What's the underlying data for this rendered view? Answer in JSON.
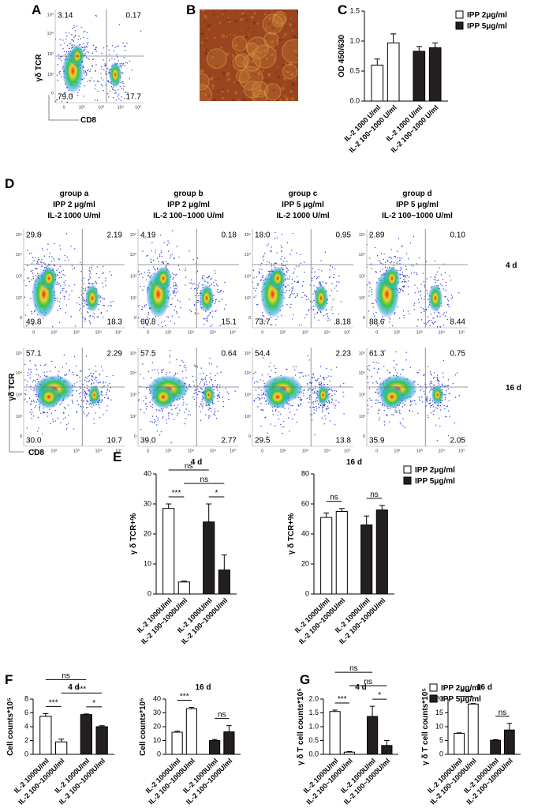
{
  "panel_labels": [
    "A",
    "B",
    "C",
    "D",
    "E",
    "F",
    "G"
  ],
  "flow_axes": {
    "y_label": "γδ TCR",
    "x_label": "CD8",
    "ticks": [
      "0",
      "10²",
      "10³",
      "10⁴",
      "10⁵"
    ]
  },
  "panel_a": {
    "quadrants": [
      "3.14",
      "0.17",
      "79.0",
      "17.7"
    ]
  },
  "panel_d": {
    "groups": [
      {
        "name": "group a",
        "ipp": "IPP 2 μg/ml",
        "il2": "IL-2 1000 U/ml"
      },
      {
        "name": "group b",
        "ipp": "IPP 2 μg/ml",
        "il2": "IL-2 100~1000 U/ml"
      },
      {
        "name": "group c",
        "ipp": "IPP 5 μg/ml",
        "il2": "IL-2 1000 U/ml"
      },
      {
        "name": "group d",
        "ipp": "IPP 5 μg/ml",
        "il2": "IL-2 100~1000 U/ml"
      }
    ],
    "rows": [
      {
        "label": "4 d",
        "quadrants": [
          [
            "29.8",
            "2.19",
            "49.8",
            "18.3"
          ],
          [
            "4.19",
            "0.18",
            "60.8",
            "15.1"
          ],
          [
            "18.0",
            "0.95",
            "73.7",
            "8.18"
          ],
          [
            "2.89",
            "0.10",
            "88.6",
            "8.44"
          ]
        ]
      },
      {
        "label": "16 d",
        "quadrants": [
          [
            "57.1",
            "2.29",
            "30.0",
            "10.7"
          ],
          [
            "57.5",
            "0.64",
            "39.0",
            "2.77"
          ],
          [
            "54.4",
            "2.23",
            "29.5",
            "13.8"
          ],
          [
            "61.3",
            "0.75",
            "35.9",
            "2.05"
          ]
        ]
      }
    ]
  },
  "chart_data": [
    {
      "type": "bar",
      "y_label": "OD 450/630",
      "categories": [
        "IL-2 1000 U/ml",
        "IL-2 100~1000 U/ml",
        "IL-2 1000 U/ml",
        "IL-2 100~1000 U/ml"
      ],
      "series": [
        {
          "name": "IPP 2μg/ml",
          "color": "#ffffff",
          "values": [
            0.6,
            0.97,
            null,
            null
          ],
          "errors": [
            0.1,
            0.15,
            null,
            null
          ]
        },
        {
          "name": "IPP 5μg/ml",
          "color": "#231f20",
          "values": [
            null,
            null,
            0.83,
            0.89
          ],
          "errors": [
            null,
            null,
            0.08,
            0.08
          ]
        }
      ],
      "ylim": [
        0,
        1.5
      ],
      "yticks": [
        {
          "value": 0,
          "label": "0.0"
        },
        0.5,
        {
          "value": 1,
          "label": "1.0"
        },
        1.5
      ],
      "legend": "right"
    },
    {
      "type": "bar",
      "title": "4 d",
      "y_label": "γ δ  TCR+%",
      "categories": [
        "IL-2 1000U/ml",
        "IL-2 100~1000U/ml",
        "IL-2 1000U/ml",
        "IL-2 100~1000U/ml"
      ],
      "series": [
        {
          "color": "#ffffff",
          "values": [
            28.5,
            4,
            null,
            null
          ],
          "errors": [
            1.5,
            0.3,
            null,
            null
          ]
        },
        {
          "color": "#231f20",
          "values": [
            null,
            null,
            24,
            8
          ],
          "errors": [
            null,
            null,
            6,
            5
          ]
        }
      ],
      "ylim": [
        0,
        40
      ],
      "yticks": [
        0,
        10,
        20,
        30,
        40
      ],
      "significance": [
        {
          "label": "***",
          "pair": [
            0,
            1
          ]
        },
        {
          "label": "*",
          "pair": [
            2,
            3
          ]
        },
        {
          "label": "ns",
          "pair": [
            1,
            3
          ]
        },
        {
          "label": "ns",
          "pair": [
            0,
            2
          ]
        }
      ]
    },
    {
      "type": "bar",
      "title": "16 d",
      "y_label": "γ δ TCR+%",
      "categories": [
        "IL-2 1000U/ml",
        "IL-2 100~1000U/ml",
        "IL-2 1000U/ml",
        "IL-2 100~1000U/ml"
      ],
      "series": [
        {
          "name": "IPP 2μg/ml",
          "color": "#ffffff",
          "values": [
            51,
            55,
            null,
            null
          ],
          "errors": [
            3,
            2,
            null,
            null
          ]
        },
        {
          "name": "IPP 5μg/ml",
          "color": "#231f20",
          "values": [
            null,
            null,
            46,
            56
          ],
          "errors": [
            null,
            null,
            6,
            3
          ]
        }
      ],
      "ylim": [
        0,
        80
      ],
      "yticks": [
        0,
        20,
        40,
        60,
        80
      ],
      "legend": "right",
      "significance": [
        {
          "label": "ns",
          "pair": [
            0,
            1
          ]
        },
        {
          "label": "ns",
          "pair": [
            2,
            3
          ]
        }
      ]
    },
    {
      "type": "bar",
      "title": "4 d",
      "y_label": "Cell counts*10⁵",
      "categories": [
        "IL-2 1000U/ml",
        "IL-2 100~1000U/ml",
        "IL-2 1000U/ml",
        "IL-2 100~1000U/ml"
      ],
      "series": [
        {
          "color": "#ffffff",
          "values": [
            5.5,
            1.8,
            null,
            null
          ],
          "errors": [
            0.4,
            0.4,
            null,
            null
          ]
        },
        {
          "color": "#231f20",
          "values": [
            null,
            null,
            5.75,
            4
          ],
          "errors": [
            null,
            null,
            0.1,
            0.15
          ]
        }
      ],
      "ylim": [
        0,
        8
      ],
      "yticks": [
        0,
        2,
        4,
        6,
        8
      ],
      "significance": [
        {
          "label": "***",
          "pair": [
            0,
            1
          ]
        },
        {
          "label": "*",
          "pair": [
            2,
            3
          ]
        },
        {
          "label": "***",
          "pair": [
            1,
            3
          ]
        },
        {
          "label": "ns",
          "pair": [
            0,
            2
          ]
        }
      ]
    },
    {
      "type": "bar",
      "title": "16 d",
      "y_label": "Cell counts*10⁵",
      "categories": [
        "IL-2 1000U/ml",
        "IL-2 100~1000U/ml",
        "IL-2 1000U/ml",
        "IL-2 100~1000U/ml"
      ],
      "series": [
        {
          "color": "#ffffff",
          "values": [
            16,
            33,
            null,
            null
          ],
          "errors": [
            0.8,
            1,
            null,
            null
          ]
        },
        {
          "color": "#231f20",
          "values": [
            null,
            null,
            10,
            16.3
          ],
          "errors": [
            null,
            null,
            0.8,
            4.5
          ]
        }
      ],
      "ylim": [
        0,
        40
      ],
      "yticks": [
        0,
        10,
        20,
        30,
        40
      ],
      "significance": [
        {
          "label": "***",
          "pair": [
            0,
            1
          ]
        },
        {
          "label": "ns",
          "pair": [
            2,
            3
          ]
        }
      ]
    },
    {
      "type": "bar",
      "title": "4 d",
      "y_label": "γ δ  T cell counts*10⁵",
      "categories": [
        "IL-2 1000U/ml",
        "IL-2 100~1000U/ml",
        "IL-2 1000U/ml",
        "IL-2 100~1000U/ml"
      ],
      "series": [
        {
          "color": "#ffffff",
          "values": [
            1.55,
            0.08,
            null,
            null
          ],
          "errors": [
            0.05,
            0.02,
            null,
            null
          ]
        },
        {
          "color": "#231f20",
          "values": [
            null,
            null,
            1.37,
            0.32
          ],
          "errors": [
            null,
            null,
            0.37,
            0.18
          ]
        }
      ],
      "ylim": [
        0,
        2
      ],
      "yticks": [
        {
          "value": 0,
          "label": "0.0"
        },
        0.5,
        {
          "value": 1,
          "label": "1.0"
        },
        1.5,
        {
          "value": 2,
          "label": "2.0"
        }
      ],
      "significance": [
        {
          "label": "***",
          "pair": [
            0,
            1
          ]
        },
        {
          "label": "*",
          "pair": [
            2,
            3
          ]
        },
        {
          "label": "ns",
          "pair": [
            1,
            3
          ]
        },
        {
          "label": "ns",
          "pair": [
            0,
            2
          ]
        }
      ]
    },
    {
      "type": "bar",
      "title": "16 d",
      "y_label": "γ δ  T cell counts*10⁵",
      "categories": [
        "IL-2 1000U/ml",
        "IL-2 100~1000U/ml",
        "IL-2 1000U/ml",
        "IL-2 100~1000U/ml"
      ],
      "series": [
        {
          "name": "IPP 2μg/ml",
          "color": "#ffffff",
          "values": [
            7.6,
            18.2,
            null,
            null
          ],
          "errors": [
            0.2,
            0.2,
            null,
            null
          ]
        },
        {
          "name": "IPP 5μg/ml",
          "color": "#231f20",
          "values": [
            null,
            null,
            5.1,
            8.8
          ],
          "errors": [
            null,
            null,
            0.2,
            2.4
          ]
        }
      ],
      "ylim": [
        0,
        20
      ],
      "yticks": [
        0,
        5,
        10,
        15,
        20
      ],
      "legend": "upper right",
      "significance": [
        {
          "label": "***",
          "pair": [
            0,
            1
          ]
        },
        {
          "label": "ns",
          "pair": [
            2,
            3
          ]
        }
      ]
    }
  ]
}
